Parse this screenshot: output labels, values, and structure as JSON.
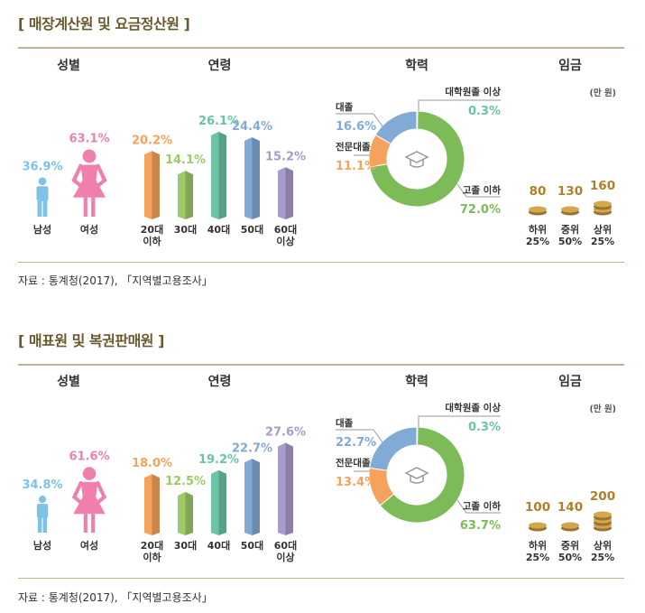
{
  "headers": {
    "gender": "성별",
    "age": "연령",
    "education": "학력",
    "wage": "임금"
  },
  "wage_unit": "(만 원)",
  "colors": {
    "male": "#7ec3e6",
    "female": "#f07fae",
    "orange": "#f5a35c",
    "lightgreen": "#9dcb6a",
    "teal": "#6cc4a4",
    "blue": "#82aad6",
    "purple": "#a99bcc",
    "darkgreen": "#7dbb58",
    "coin": "#d6a64c"
  },
  "sections": [
    {
      "title": "[ 매장계산원 및 요금정산원 ]",
      "source": "자료 : 통계청(2017), 「지역별고용조사」",
      "chart_data": {
        "gender": {
          "type": "bar",
          "categories": [
            "남성",
            "여성"
          ],
          "values": [
            36.9,
            63.1
          ],
          "labels": [
            "36.9%",
            "63.1%"
          ]
        },
        "age": {
          "type": "bar",
          "categories": [
            "20대 이하",
            "30대",
            "40대",
            "50대",
            "60대 이상"
          ],
          "values": [
            20.2,
            14.1,
            26.1,
            24.4,
            15.2
          ],
          "labels": [
            "20.2%",
            "14.1%",
            "26.1%",
            "24.4%",
            "15.2%"
          ]
        },
        "education": {
          "type": "pie",
          "categories": [
            "대학원졸 이상",
            "고졸 이하",
            "전문대졸",
            "대졸"
          ],
          "values": [
            0.3,
            72.0,
            11.1,
            16.6
          ],
          "labels": [
            "0.3%",
            "72.0%",
            "11.1%",
            "16.6%"
          ]
        },
        "wage": {
          "type": "bar",
          "categories": [
            "하위 25%",
            "중위 50%",
            "상위 25%"
          ],
          "values": [
            80,
            130,
            160
          ],
          "labels": [
            "80",
            "130",
            "160"
          ],
          "coin_stacks": [
            1,
            1,
            2
          ]
        }
      }
    },
    {
      "title": "[ 매표원 및 복권판매원 ]",
      "source": "자료 : 통계청(2017), 「지역별고용조사」",
      "chart_data": {
        "gender": {
          "type": "bar",
          "categories": [
            "남성",
            "여성"
          ],
          "values": [
            34.8,
            61.6
          ],
          "labels": [
            "34.8%",
            "61.6%"
          ]
        },
        "age": {
          "type": "bar",
          "categories": [
            "20대 이하",
            "30대",
            "40대",
            "50대",
            "60대 이상"
          ],
          "values": [
            18.0,
            12.5,
            19.2,
            22.7,
            27.6
          ],
          "labels": [
            "18.0%",
            "12.5%",
            "19.2%",
            "22.7%",
            "27.6%"
          ]
        },
        "education": {
          "type": "pie",
          "categories": [
            "대학원졸 이상",
            "고졸 이하",
            "전문대졸",
            "대졸"
          ],
          "values": [
            0.3,
            63.7,
            13.4,
            22.7
          ],
          "labels": [
            "0.3%",
            "63.7%",
            "13.4%",
            "22.7%"
          ]
        },
        "wage": {
          "type": "bar",
          "categories": [
            "하위 25%",
            "중위 50%",
            "상위 25%"
          ],
          "values": [
            100,
            140,
            200
          ],
          "labels": [
            "100",
            "140",
            "200"
          ],
          "coin_stacks": [
            1,
            1,
            3
          ]
        }
      }
    }
  ]
}
